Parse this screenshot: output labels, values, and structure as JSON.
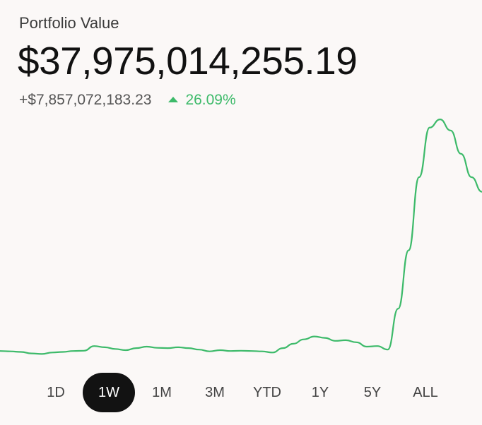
{
  "header": {
    "title": "Portfolio Value",
    "value": "$37,975,014,255.19",
    "change_amount": "+$7,857,072,183.23",
    "change_percent": "26.09%"
  },
  "colors": {
    "positive": "#3dba6a",
    "background": "#fbf8f7",
    "active_range_bg": "#121212"
  },
  "icons": {
    "change_direction": "triangle-up-icon"
  },
  "chart_data": {
    "type": "line",
    "title": "",
    "xlabel": "",
    "ylabel": "",
    "grid": false,
    "legend": "none",
    "x": [
      0,
      1,
      2,
      3,
      4,
      5,
      6,
      7,
      8,
      9,
      10,
      11,
      12,
      13,
      14,
      15,
      16,
      17,
      18,
      19,
      20,
      21,
      22,
      23,
      24,
      25,
      26,
      27,
      28,
      29,
      30,
      31,
      32,
      33,
      34,
      35,
      36,
      37,
      38,
      39,
      40,
      41,
      42,
      43,
      44,
      45,
      46
    ],
    "series": [
      {
        "values": [
          30.05,
          30.04,
          30.02,
          29.97,
          29.95,
          30.0,
          30.02,
          30.05,
          30.06,
          30.22,
          30.18,
          30.12,
          30.08,
          30.15,
          30.2,
          30.16,
          30.15,
          30.18,
          30.15,
          30.1,
          30.04,
          30.08,
          30.05,
          30.06,
          30.05,
          30.04,
          30.0,
          30.15,
          30.3,
          30.45,
          30.55,
          30.5,
          30.4,
          30.42,
          30.35,
          30.2,
          30.22,
          30.1,
          31.5,
          33.5,
          36.0,
          37.7,
          37.98,
          37.6,
          36.8,
          36.0,
          35.5
        ]
      }
    ],
    "ylim": [
      29.5,
      38.2
    ]
  },
  "ranges": {
    "items": [
      "1D",
      "1W",
      "1M",
      "3M",
      "YTD",
      "1Y",
      "5Y",
      "ALL"
    ],
    "selected": "1W"
  }
}
